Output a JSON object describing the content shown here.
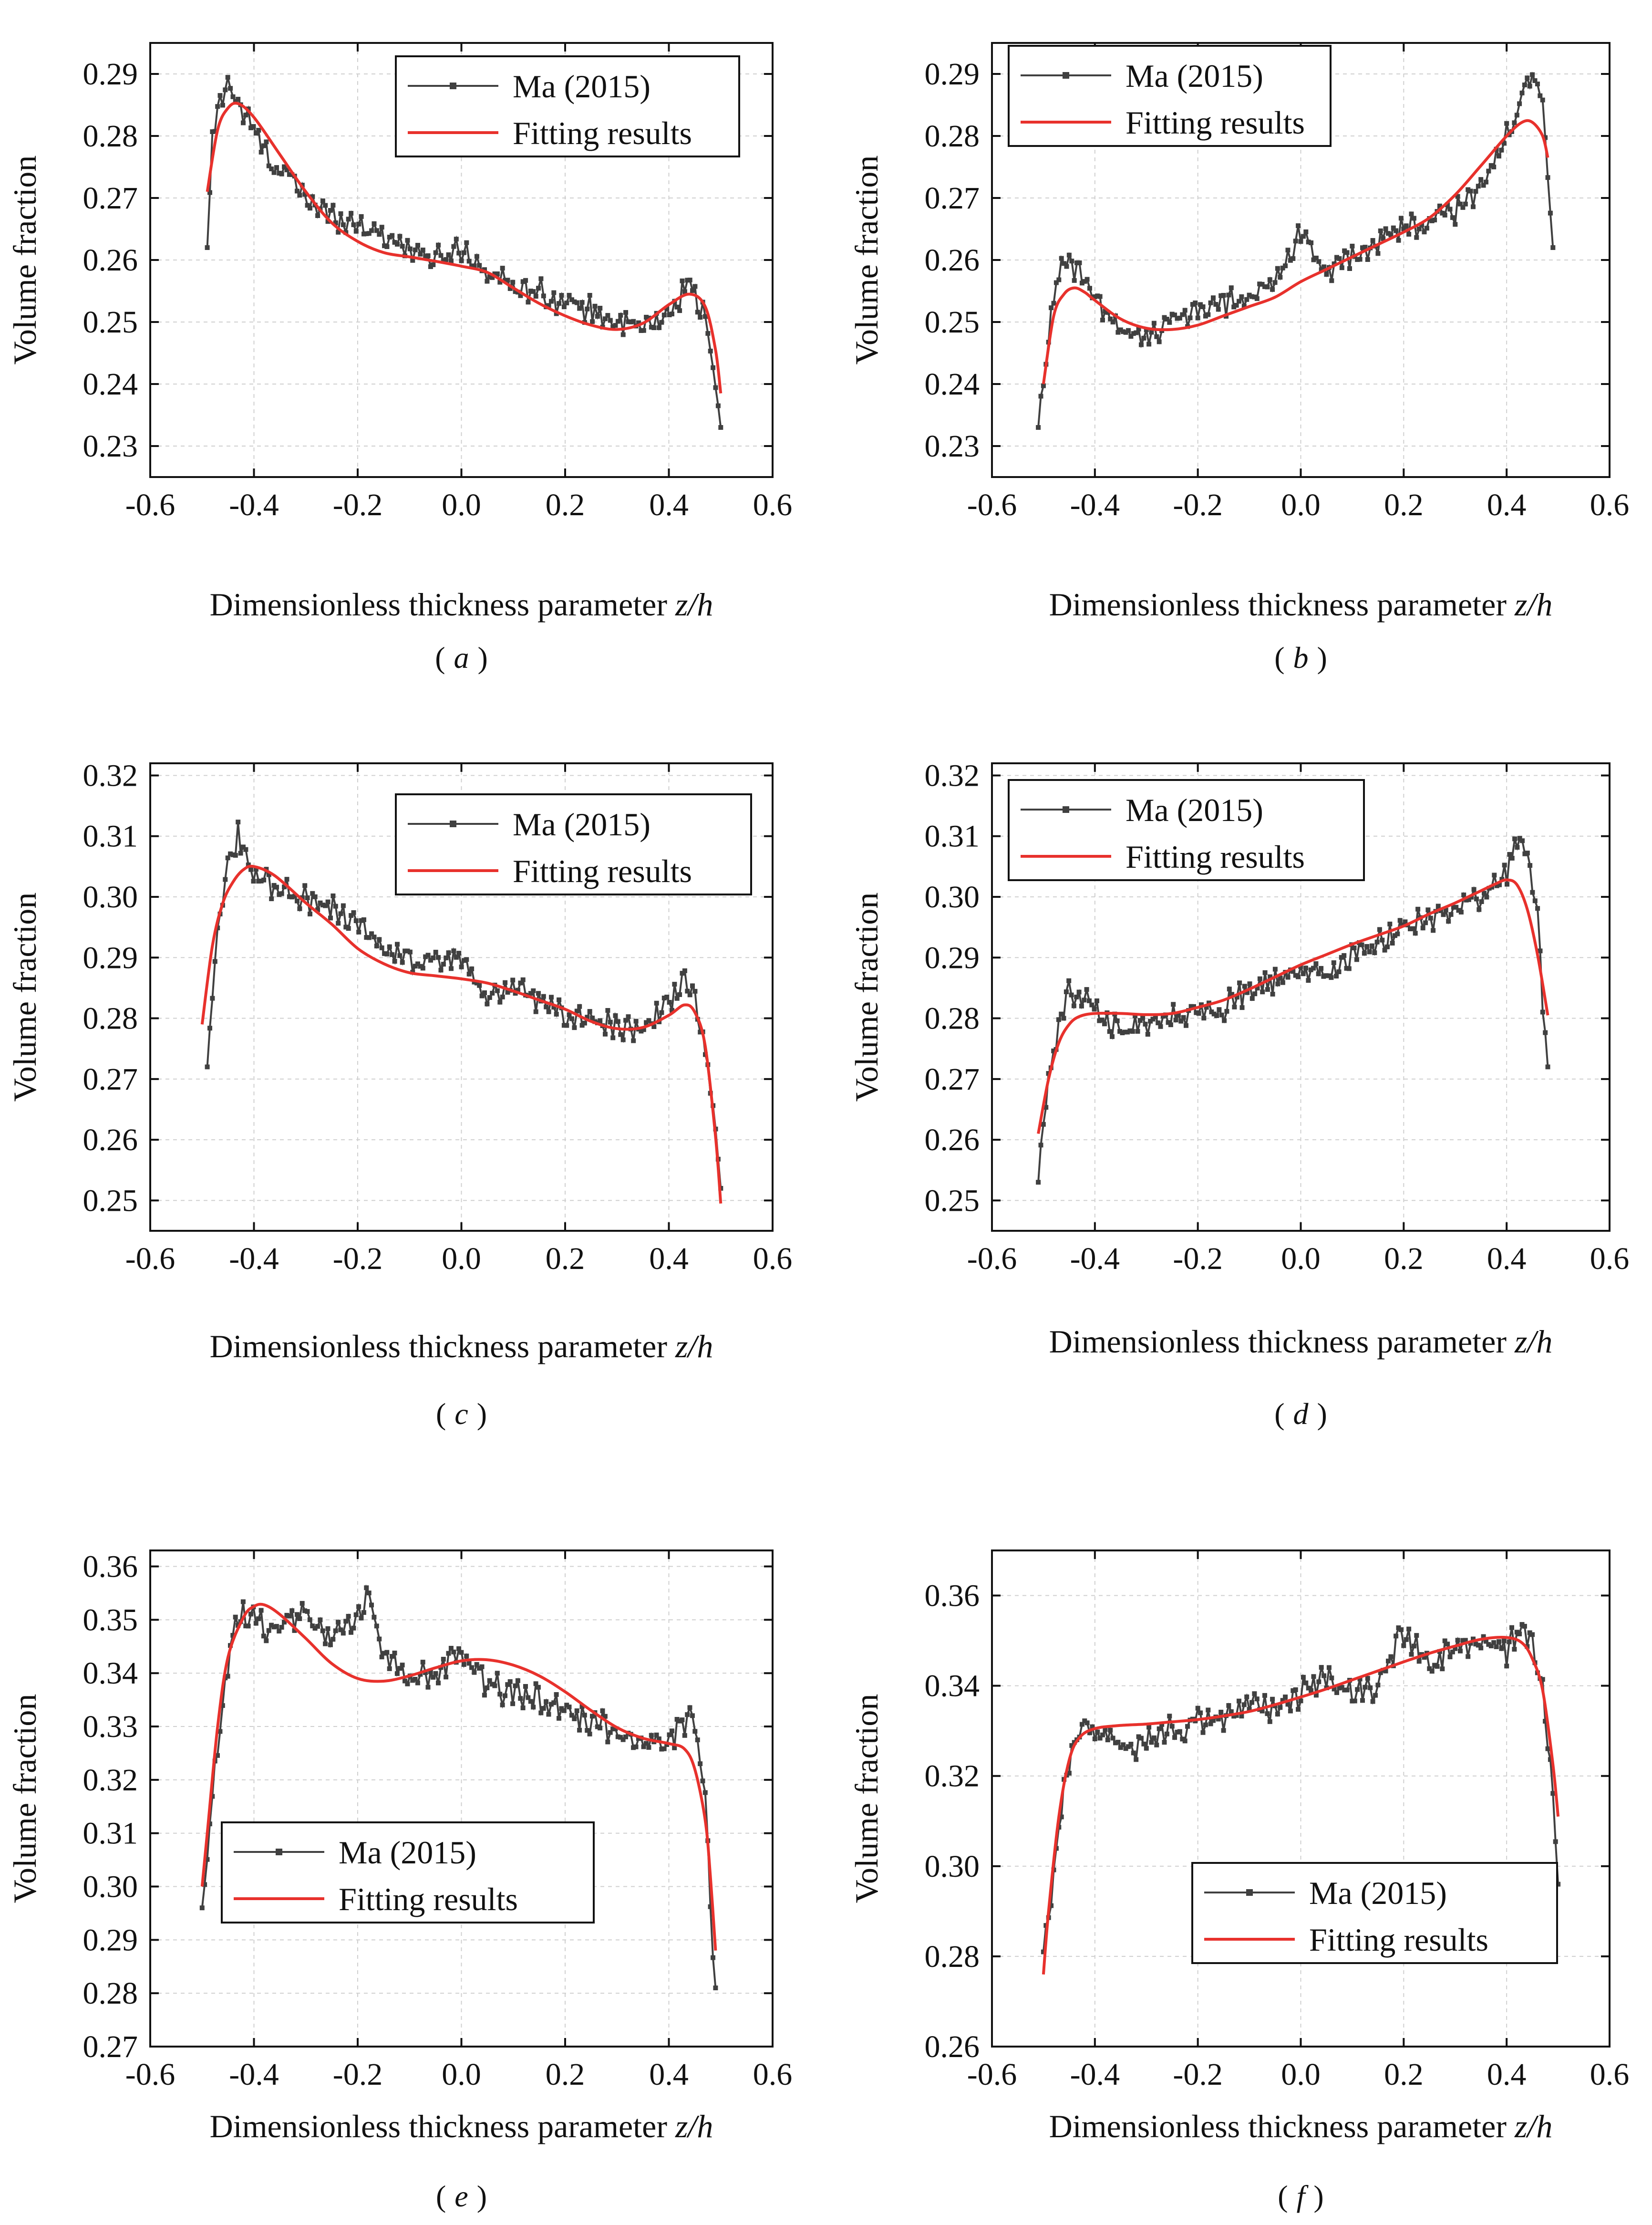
{
  "chart_data": [
    {
      "panel": "a",
      "caption_open": "(",
      "caption_letter": "a",
      "caption_close": ")",
      "type": "line",
      "xlabel": "Dimensionless thickness parameter",
      "xlabel_var": "z/h",
      "ylabel": "Volume fraction",
      "xlim": [
        -0.6,
        0.6
      ],
      "ylim": [
        0.225,
        0.295
      ],
      "xticks": [
        "-0.6",
        "-0.4",
        "-0.2",
        "0.0",
        "0.2",
        "0.4",
        "0.6"
      ],
      "yticks": [
        "0.23",
        "0.24",
        "0.25",
        "0.26",
        "0.27",
        "0.28",
        "0.29"
      ],
      "legend_position": "top-right",
      "series": [
        {
          "name": "Ma (2015)",
          "color": "#404040",
          "marker": "square",
          "noisy": true,
          "x": [
            -0.49,
            -0.48,
            -0.46,
            -0.45,
            -0.43,
            -0.4,
            -0.37,
            -0.34,
            -0.3,
            -0.25,
            -0.2,
            -0.15,
            -0.1,
            -0.05,
            0.0,
            0.05,
            0.1,
            0.15,
            0.2,
            0.25,
            0.3,
            0.35,
            0.4,
            0.44,
            0.47,
            0.49,
            0.5
          ],
          "values": [
            0.262,
            0.28,
            0.287,
            0.289,
            0.285,
            0.281,
            0.276,
            0.274,
            0.27,
            0.267,
            0.266,
            0.264,
            0.262,
            0.26,
            0.262,
            0.258,
            0.256,
            0.255,
            0.253,
            0.252,
            0.25,
            0.249,
            0.251,
            0.257,
            0.25,
            0.24,
            0.233
          ]
        },
        {
          "name": "Fitting results",
          "color": "#e8312c",
          "marker": "none",
          "noisy": false,
          "x": [
            -0.49,
            -0.47,
            -0.45,
            -0.43,
            -0.4,
            -0.35,
            -0.3,
            -0.25,
            -0.2,
            -0.15,
            -0.1,
            -0.05,
            0.0,
            0.05,
            0.1,
            0.15,
            0.2,
            0.25,
            0.3,
            0.35,
            0.4,
            0.44,
            0.47,
            0.49,
            0.5
          ],
          "values": [
            0.271,
            0.281,
            0.2845,
            0.2852,
            0.283,
            0.277,
            0.271,
            0.266,
            0.263,
            0.2612,
            0.2605,
            0.2598,
            0.259,
            0.258,
            0.2555,
            0.253,
            0.251,
            0.2495,
            0.2488,
            0.2498,
            0.2528,
            0.2545,
            0.2525,
            0.2455,
            0.2385
          ]
        }
      ]
    },
    {
      "panel": "b",
      "caption_open": "(",
      "caption_letter": "b",
      "caption_close": ")",
      "type": "line",
      "xlabel": "Dimensionless thickness parameter",
      "xlabel_var": "z/h",
      "ylabel": "Volume fraction",
      "xlim": [
        -0.6,
        0.6
      ],
      "ylim": [
        0.225,
        0.295
      ],
      "xticks": [
        "-0.6",
        "-0.4",
        "-0.2",
        "0.0",
        "0.2",
        "0.4",
        "0.6"
      ],
      "yticks": [
        "0.23",
        "0.24",
        "0.25",
        "0.26",
        "0.27",
        "0.28",
        "0.29"
      ],
      "legend_position": "top-left",
      "series": [
        {
          "name": "Ma (2015)",
          "color": "#404040",
          "marker": "square",
          "noisy": true,
          "x": [
            -0.51,
            -0.5,
            -0.48,
            -0.46,
            -0.43,
            -0.4,
            -0.35,
            -0.3,
            -0.25,
            -0.2,
            -0.15,
            -0.1,
            -0.05,
            0.0,
            0.05,
            0.1,
            0.15,
            0.2,
            0.25,
            0.3,
            0.35,
            0.4,
            0.43,
            0.45,
            0.47,
            0.48,
            0.49
          ],
          "values": [
            0.233,
            0.24,
            0.255,
            0.26,
            0.258,
            0.254,
            0.248,
            0.248,
            0.25,
            0.252,
            0.253,
            0.254,
            0.256,
            0.265,
            0.258,
            0.261,
            0.263,
            0.265,
            0.266,
            0.268,
            0.272,
            0.28,
            0.286,
            0.289,
            0.285,
            0.273,
            0.262
          ]
        },
        {
          "name": "Fitting results",
          "color": "#e8312c",
          "marker": "none",
          "noisy": false,
          "x": [
            -0.5,
            -0.48,
            -0.46,
            -0.44,
            -0.42,
            -0.4,
            -0.35,
            -0.3,
            -0.25,
            -0.2,
            -0.15,
            -0.1,
            -0.05,
            0.0,
            0.05,
            0.1,
            0.15,
            0.2,
            0.25,
            0.3,
            0.35,
            0.4,
            0.43,
            0.45,
            0.47,
            0.48
          ],
          "values": [
            0.24,
            0.251,
            0.2545,
            0.2555,
            0.2548,
            0.2535,
            0.2505,
            0.249,
            0.2488,
            0.2495,
            0.251,
            0.2525,
            0.254,
            0.2565,
            0.2585,
            0.2605,
            0.2625,
            0.2645,
            0.2668,
            0.2705,
            0.2752,
            0.28,
            0.2822,
            0.2822,
            0.28,
            0.2765
          ]
        }
      ]
    },
    {
      "panel": "c",
      "caption_open": "(",
      "caption_letter": "c",
      "caption_close": ")",
      "type": "line",
      "xlabel": "Dimensionless thickness parameter",
      "xlabel_var": "z/h",
      "ylabel": "Volume fraction",
      "xlim": [
        -0.6,
        0.6
      ],
      "ylim": [
        0.245,
        0.322
      ],
      "xticks": [
        "-0.6",
        "-0.4",
        "-0.2",
        "0.0",
        "0.2",
        "0.4",
        "0.6"
      ],
      "yticks": [
        "0.25",
        "0.26",
        "0.27",
        "0.28",
        "0.29",
        "0.30",
        "0.31",
        "0.32"
      ],
      "legend_position": "top-right",
      "series": [
        {
          "name": "Ma (2015)",
          "color": "#404040",
          "marker": "square",
          "noisy": true,
          "x": [
            -0.49,
            -0.48,
            -0.47,
            -0.45,
            -0.43,
            -0.41,
            -0.38,
            -0.35,
            -0.3,
            -0.25,
            -0.2,
            -0.15,
            -0.1,
            -0.05,
            0.0,
            0.05,
            0.1,
            0.15,
            0.2,
            0.25,
            0.3,
            0.35,
            0.4,
            0.43,
            0.45,
            0.47,
            0.49,
            0.5
          ],
          "values": [
            0.272,
            0.285,
            0.296,
            0.305,
            0.31,
            0.305,
            0.303,
            0.301,
            0.3,
            0.298,
            0.296,
            0.292,
            0.29,
            0.289,
            0.29,
            0.283,
            0.285,
            0.283,
            0.281,
            0.28,
            0.279,
            0.278,
            0.282,
            0.286,
            0.284,
            0.275,
            0.262,
            0.252
          ]
        },
        {
          "name": "Fitting results",
          "color": "#e8312c",
          "marker": "none",
          "noisy": false,
          "x": [
            -0.5,
            -0.48,
            -0.46,
            -0.44,
            -0.42,
            -0.4,
            -0.36,
            -0.3,
            -0.25,
            -0.2,
            -0.15,
            -0.1,
            -0.05,
            0.0,
            0.05,
            0.1,
            0.15,
            0.2,
            0.25,
            0.3,
            0.35,
            0.4,
            0.43,
            0.45,
            0.47,
            0.49,
            0.5
          ],
          "values": [
            0.279,
            0.292,
            0.299,
            0.3025,
            0.3045,
            0.305,
            0.3035,
            0.299,
            0.2955,
            0.2915,
            0.289,
            0.2875,
            0.287,
            0.2865,
            0.2858,
            0.2845,
            0.283,
            0.2815,
            0.2795,
            0.2783,
            0.2785,
            0.2805,
            0.2822,
            0.281,
            0.2755,
            0.2605,
            0.2495
          ]
        }
      ]
    },
    {
      "panel": "d",
      "caption_open": "(",
      "caption_letter": "d",
      "caption_close": ")",
      "type": "line",
      "xlabel": "Dimensionless thickness parameter",
      "xlabel_var": "z/h",
      "ylabel": "Volume fraction",
      "xlim": [
        -0.6,
        0.6
      ],
      "ylim": [
        0.245,
        0.322
      ],
      "xticks": [
        "-0.6",
        "-0.4",
        "-0.2",
        "0.0",
        "0.2",
        "0.4",
        "0.6"
      ],
      "yticks": [
        "0.25",
        "0.26",
        "0.27",
        "0.28",
        "0.29",
        "0.30",
        "0.31",
        "0.32"
      ],
      "legend_position": "top-left",
      "series": [
        {
          "name": "Ma (2015)",
          "color": "#404040",
          "marker": "square",
          "noisy": true,
          "x": [
            -0.51,
            -0.5,
            -0.49,
            -0.47,
            -0.45,
            -0.43,
            -0.4,
            -0.35,
            -0.3,
            -0.25,
            -0.2,
            -0.15,
            -0.1,
            -0.05,
            0.0,
            0.05,
            0.1,
            0.15,
            0.2,
            0.25,
            0.3,
            0.35,
            0.4,
            0.42,
            0.44,
            0.46,
            0.47,
            0.48
          ],
          "values": [
            0.253,
            0.262,
            0.27,
            0.278,
            0.285,
            0.284,
            0.282,
            0.278,
            0.279,
            0.28,
            0.281,
            0.282,
            0.285,
            0.286,
            0.288,
            0.287,
            0.29,
            0.292,
            0.295,
            0.296,
            0.298,
            0.3,
            0.304,
            0.31,
            0.307,
            0.298,
            0.283,
            0.272
          ]
        },
        {
          "name": "Fitting results",
          "color": "#e8312c",
          "marker": "none",
          "noisy": false,
          "x": [
            -0.51,
            -0.49,
            -0.47,
            -0.45,
            -0.43,
            -0.4,
            -0.35,
            -0.3,
            -0.25,
            -0.2,
            -0.15,
            -0.1,
            -0.05,
            0.0,
            0.05,
            0.1,
            0.15,
            0.2,
            0.25,
            0.3,
            0.35,
            0.38,
            0.4,
            0.42,
            0.44,
            0.46,
            0.48
          ],
          "values": [
            0.261,
            0.27,
            0.276,
            0.279,
            0.2803,
            0.2808,
            0.2808,
            0.2806,
            0.2808,
            0.2818,
            0.283,
            0.2848,
            0.2868,
            0.2888,
            0.2905,
            0.2922,
            0.2937,
            0.2952,
            0.2972,
            0.299,
            0.301,
            0.3022,
            0.3028,
            0.302,
            0.298,
            0.2905,
            0.2805
          ]
        }
      ]
    },
    {
      "panel": "e",
      "caption_open": "(",
      "caption_letter": "e",
      "caption_close": ")",
      "type": "line",
      "xlabel": "Dimensionless thickness parameter",
      "xlabel_var": "z/h",
      "ylabel": "Volume fraction",
      "xlim": [
        -0.6,
        0.6
      ],
      "ylim": [
        0.27,
        0.363
      ],
      "xticks": [
        "-0.6",
        "-0.4",
        "-0.2",
        "0.0",
        "0.2",
        "0.4",
        "0.6"
      ],
      "yticks": [
        "0.27",
        "0.28",
        "0.29",
        "0.30",
        "0.31",
        "0.32",
        "0.33",
        "0.34",
        "0.35",
        "0.36"
      ],
      "legend_position": "bottom-left",
      "series": [
        {
          "name": "Ma (2015)",
          "color": "#404040",
          "marker": "square",
          "noisy": true,
          "x": [
            -0.5,
            -0.49,
            -0.48,
            -0.46,
            -0.44,
            -0.42,
            -0.4,
            -0.37,
            -0.33,
            -0.3,
            -0.25,
            -0.2,
            -0.18,
            -0.15,
            -0.1,
            -0.05,
            0.0,
            0.05,
            0.1,
            0.15,
            0.2,
            0.25,
            0.3,
            0.35,
            0.4,
            0.43,
            0.45,
            0.47,
            0.48,
            0.49
          ],
          "values": [
            0.296,
            0.305,
            0.318,
            0.335,
            0.348,
            0.351,
            0.352,
            0.347,
            0.35,
            0.352,
            0.346,
            0.35,
            0.355,
            0.343,
            0.338,
            0.34,
            0.345,
            0.338,
            0.336,
            0.335,
            0.333,
            0.331,
            0.329,
            0.327,
            0.327,
            0.331,
            0.331,
            0.318,
            0.298,
            0.281
          ]
        },
        {
          "name": "Fitting results",
          "color": "#e8312c",
          "marker": "none",
          "noisy": false,
          "x": [
            -0.5,
            -0.49,
            -0.47,
            -0.45,
            -0.42,
            -0.4,
            -0.38,
            -0.35,
            -0.3,
            -0.25,
            -0.2,
            -0.15,
            -0.1,
            -0.05,
            0.0,
            0.05,
            0.1,
            0.15,
            0.2,
            0.25,
            0.3,
            0.35,
            0.4,
            0.43,
            0.45,
            0.47,
            0.48,
            0.49
          ],
          "values": [
            0.3,
            0.31,
            0.33,
            0.343,
            0.3505,
            0.3525,
            0.3528,
            0.351,
            0.3465,
            0.3418,
            0.339,
            0.3385,
            0.3395,
            0.341,
            0.3423,
            0.3425,
            0.3415,
            0.3395,
            0.3365,
            0.333,
            0.3298,
            0.3278,
            0.3268,
            0.3258,
            0.322,
            0.3125,
            0.302,
            0.288
          ]
        }
      ]
    },
    {
      "panel": "f",
      "caption_open": "(",
      "caption_letter": "f",
      "caption_close": ")",
      "type": "line",
      "xlabel": "Dimensionless thickness parameter",
      "xlabel_var": "z/h",
      "ylabel": "Volume fraction",
      "xlim": [
        -0.6,
        0.6
      ],
      "ylim": [
        0.26,
        0.37
      ],
      "xticks": [
        "-0.6",
        "-0.4",
        "-0.2",
        "0.0",
        "0.2",
        "0.4",
        "0.6"
      ],
      "yticks": [
        "0.26",
        "0.28",
        "0.30",
        "0.32",
        "0.34",
        "0.36"
      ],
      "legend_position": "bottom-right",
      "series": [
        {
          "name": "Ma (2015)",
          "color": "#404040",
          "marker": "square",
          "noisy": true,
          "x": [
            -0.5,
            -0.49,
            -0.48,
            -0.46,
            -0.44,
            -0.42,
            -0.4,
            -0.35,
            -0.3,
            -0.25,
            -0.2,
            -0.15,
            -0.1,
            -0.05,
            0.0,
            0.05,
            0.1,
            0.15,
            0.2,
            0.25,
            0.3,
            0.35,
            0.4,
            0.43,
            0.45,
            0.47,
            0.49,
            0.5
          ],
          "values": [
            0.281,
            0.288,
            0.3,
            0.318,
            0.328,
            0.332,
            0.33,
            0.326,
            0.328,
            0.33,
            0.332,
            0.333,
            0.336,
            0.334,
            0.338,
            0.343,
            0.337,
            0.34,
            0.352,
            0.345,
            0.348,
            0.35,
            0.348,
            0.352,
            0.35,
            0.34,
            0.315,
            0.296
          ]
        },
        {
          "name": "Fitting results",
          "color": "#e8312c",
          "marker": "none",
          "noisy": false,
          "x": [
            -0.5,
            -0.49,
            -0.47,
            -0.45,
            -0.43,
            -0.4,
            -0.35,
            -0.3,
            -0.25,
            -0.2,
            -0.15,
            -0.1,
            -0.05,
            0.0,
            0.05,
            0.1,
            0.15,
            0.2,
            0.25,
            0.3,
            0.35,
            0.4,
            0.43,
            0.45,
            0.47,
            0.49,
            0.5
          ],
          "values": [
            0.276,
            0.29,
            0.311,
            0.3235,
            0.3285,
            0.3305,
            0.3312,
            0.3315,
            0.332,
            0.3325,
            0.3333,
            0.3343,
            0.3358,
            0.3375,
            0.3393,
            0.3413,
            0.3433,
            0.3453,
            0.3472,
            0.3488,
            0.3503,
            0.3507,
            0.3495,
            0.346,
            0.339,
            0.3225,
            0.311
          ]
        }
      ]
    }
  ]
}
